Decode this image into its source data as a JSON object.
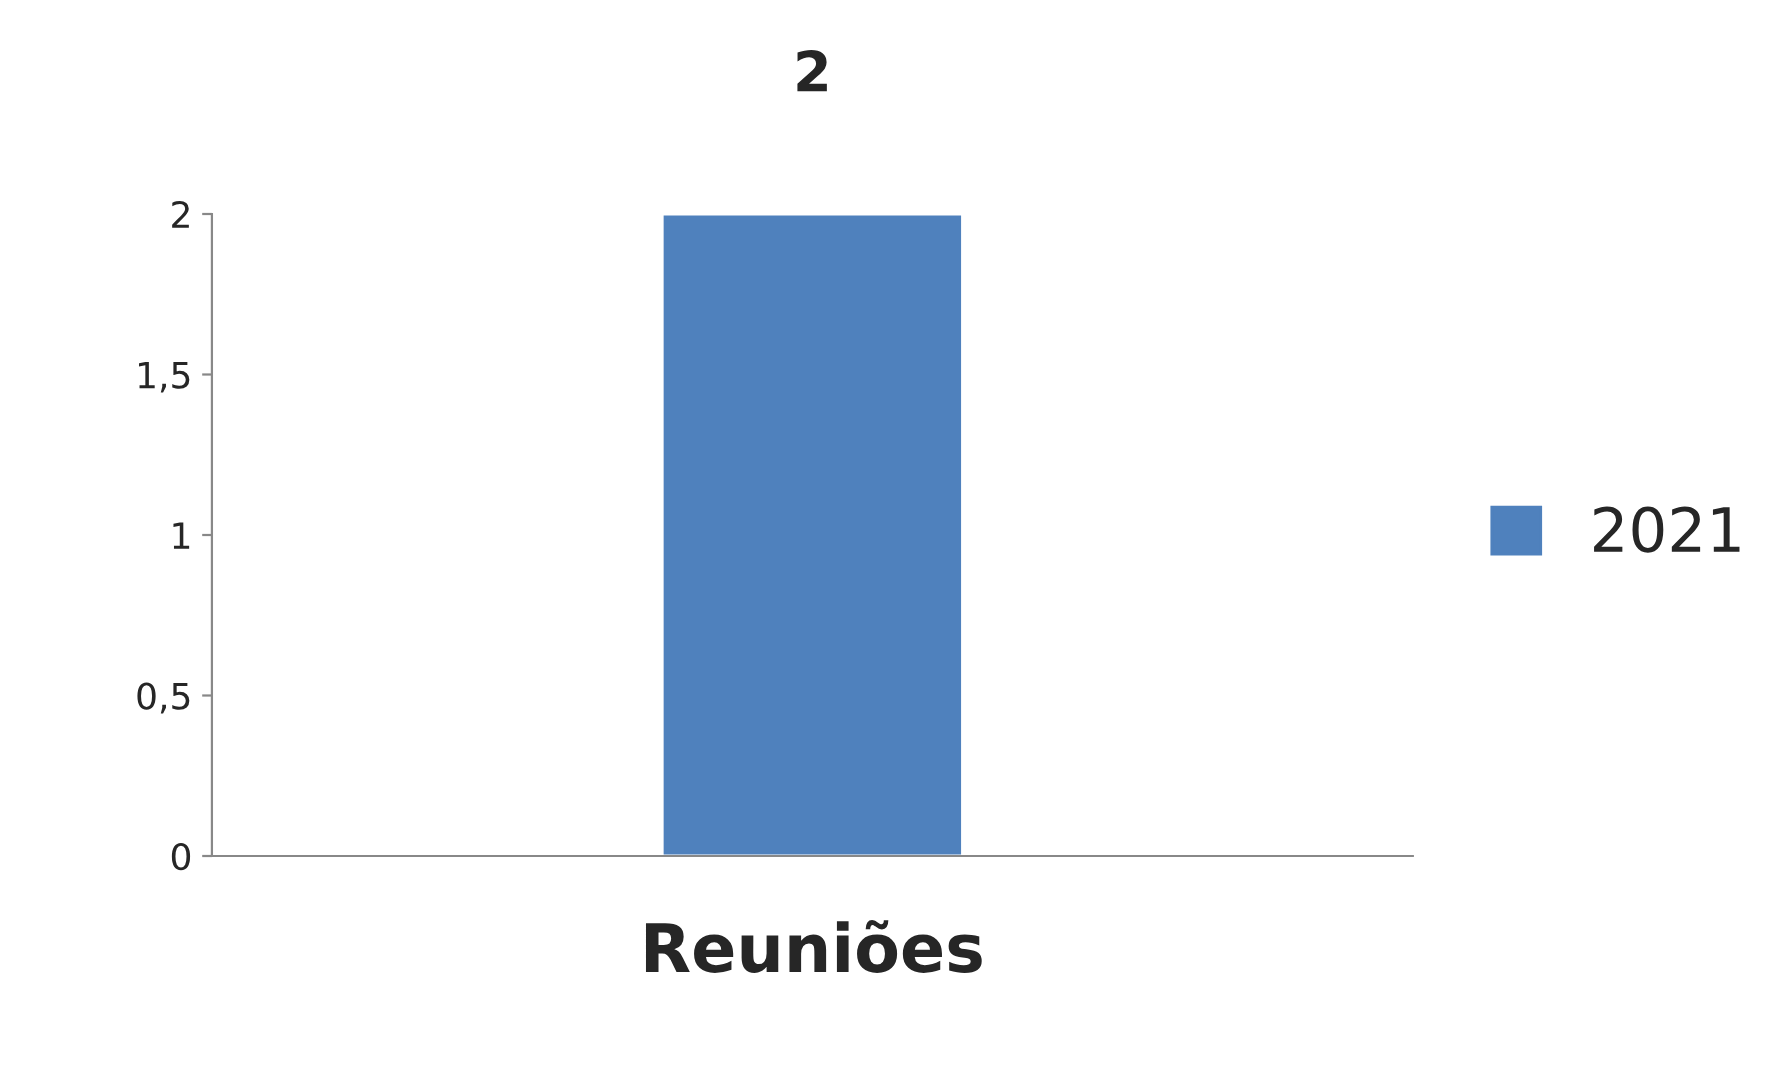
{
  "chart_data": {
    "type": "bar",
    "categories": [
      "Reuniões"
    ],
    "series": [
      {
        "name": "2021",
        "color": "#4f81bd",
        "values": [
          2
        ]
      }
    ],
    "ylim": [
      0,
      2
    ],
    "yticks": [
      0,
      {
        "value": 0.5,
        "label": "0,5"
      },
      1,
      {
        "value": 1.5,
        "label": "1,5"
      },
      2
    ],
    "data_labels": true,
    "legend": "right",
    "grid": false
  }
}
